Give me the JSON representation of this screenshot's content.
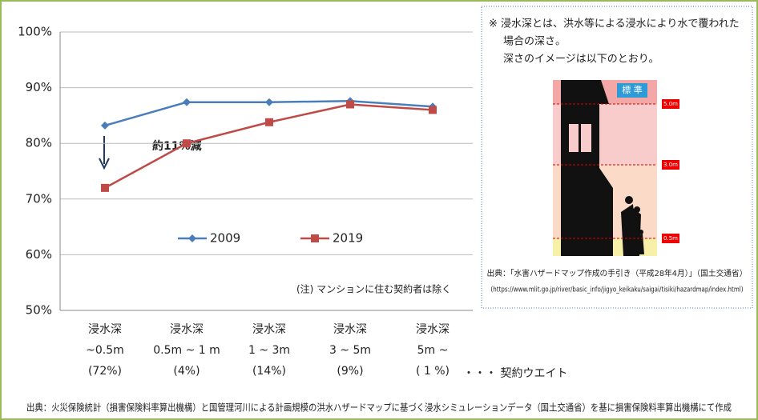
{
  "chart_data": {
    "type": "line",
    "categories": [
      [
        "浸水深",
        "~0.5m",
        "(72%)"
      ],
      [
        "浸水深",
        "0.5m ~ 1 m",
        "(4%)"
      ],
      [
        "浸水深",
        "1 ~ 3m",
        "(14%)"
      ],
      [
        "浸水深",
        "3 ~ 5m",
        "(9%)"
      ],
      [
        "浸水深",
        "5m ~",
        "( 1 %)"
      ]
    ],
    "category_note": "・・・ 契約ウエイト",
    "series": [
      {
        "name": "2009",
        "color": "#4a7ebb",
        "marker": "diamond",
        "values": [
          83.2,
          87.4,
          87.4,
          87.6,
          86.6
        ]
      },
      {
        "name": "2019",
        "color": "#be4b48",
        "marker": "square",
        "values": [
          72.0,
          80.0,
          83.8,
          87.0,
          86.0
        ]
      }
    ],
    "ylim": [
      50,
      100
    ],
    "yticks": [
      {
        "value": 50,
        "label": "50%"
      },
      {
        "value": 60,
        "label": "60%"
      },
      {
        "value": 70,
        "label": "70%"
      },
      {
        "value": 80,
        "label": "80%"
      },
      {
        "value": 90,
        "label": "90%"
      },
      {
        "value": 100,
        "label": "100%"
      }
    ],
    "grid": true,
    "annotation": "約11%減",
    "note": "(注) マンションに住む契約者は除く",
    "source": "出典：火災保険統計（損害保険料率算出機構）と国管理河川による計画規模の洪水ハザードマップに基づく浸水シミュレーションデータ（国土交通省）を基に損害保険料率算出機構にて作成"
  },
  "inset": {
    "note_lines": [
      "※ 浸水深とは、洪水等による浸水により水で覆われた",
      "場合の深さ。",
      "深さのイメージは以下のとおり。"
    ],
    "badge": "標 準",
    "depth_labels": [
      "5.0m",
      "3.0m",
      "0.5m"
    ],
    "source_lines": [
      "出典：「水害ハザードマップ作成の手引き（平成28年4月）」（国土交通省）",
      "(https://www.mlit.go.jp/river/basic_info/jigyo_keikaku/saigai/tisiki/hazardmap/index.html)"
    ]
  }
}
